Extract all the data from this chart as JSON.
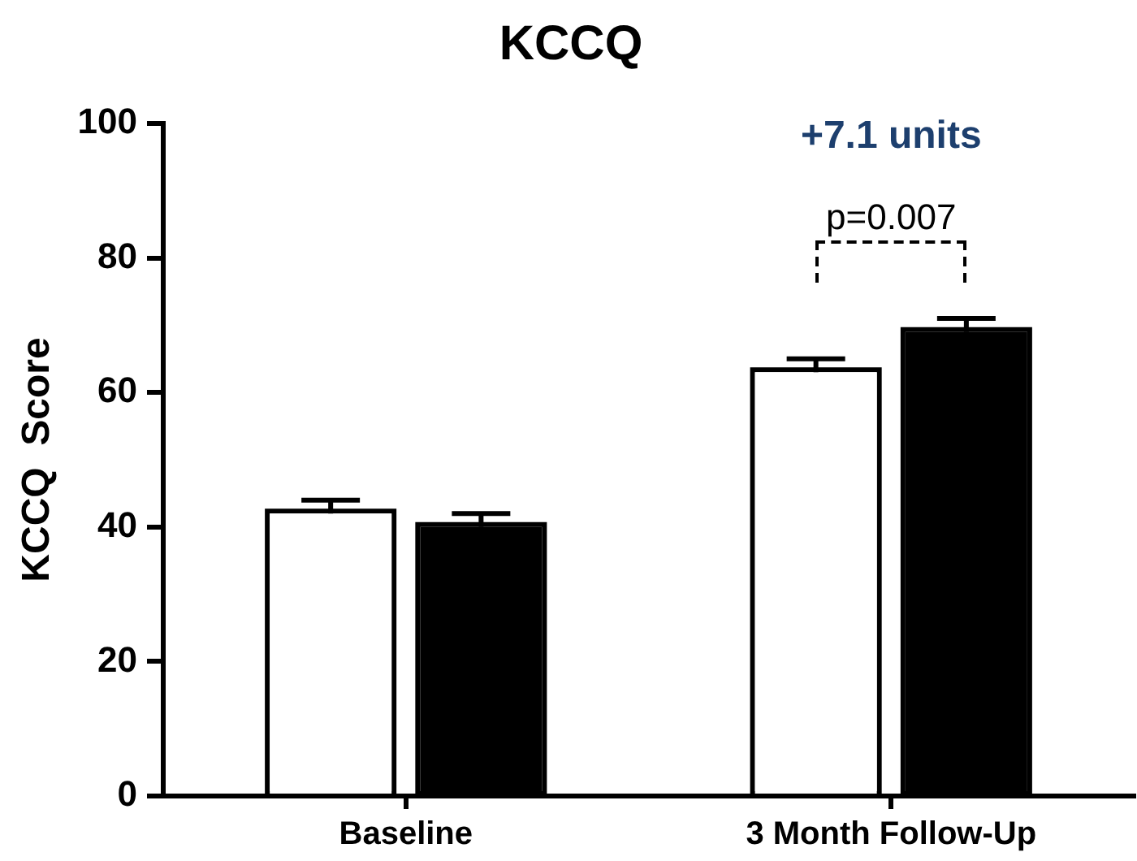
{
  "chart_data": {
    "type": "bar",
    "title": "KCCQ",
    "ylabel": "KCCQ  Score",
    "categories": [
      "Baseline",
      "3 Month Follow-Up"
    ],
    "series": [
      {
        "color": "#ffffff",
        "values": [
          42,
          63
        ],
        "errors": [
          [
            42,
            44
          ],
          [
            63,
            65
          ]
        ]
      },
      {
        "color": "#000000",
        "values": [
          40,
          69
        ],
        "errors": [
          [
            40,
            42
          ],
          [
            69,
            71
          ]
        ]
      }
    ],
    "ylim": [
      0,
      100
    ],
    "yticks": [
      0,
      20,
      40,
      60,
      80,
      100
    ],
    "grid": false,
    "legend": false,
    "annotations": [
      "+7.1 units",
      "p=0.007"
    ]
  }
}
